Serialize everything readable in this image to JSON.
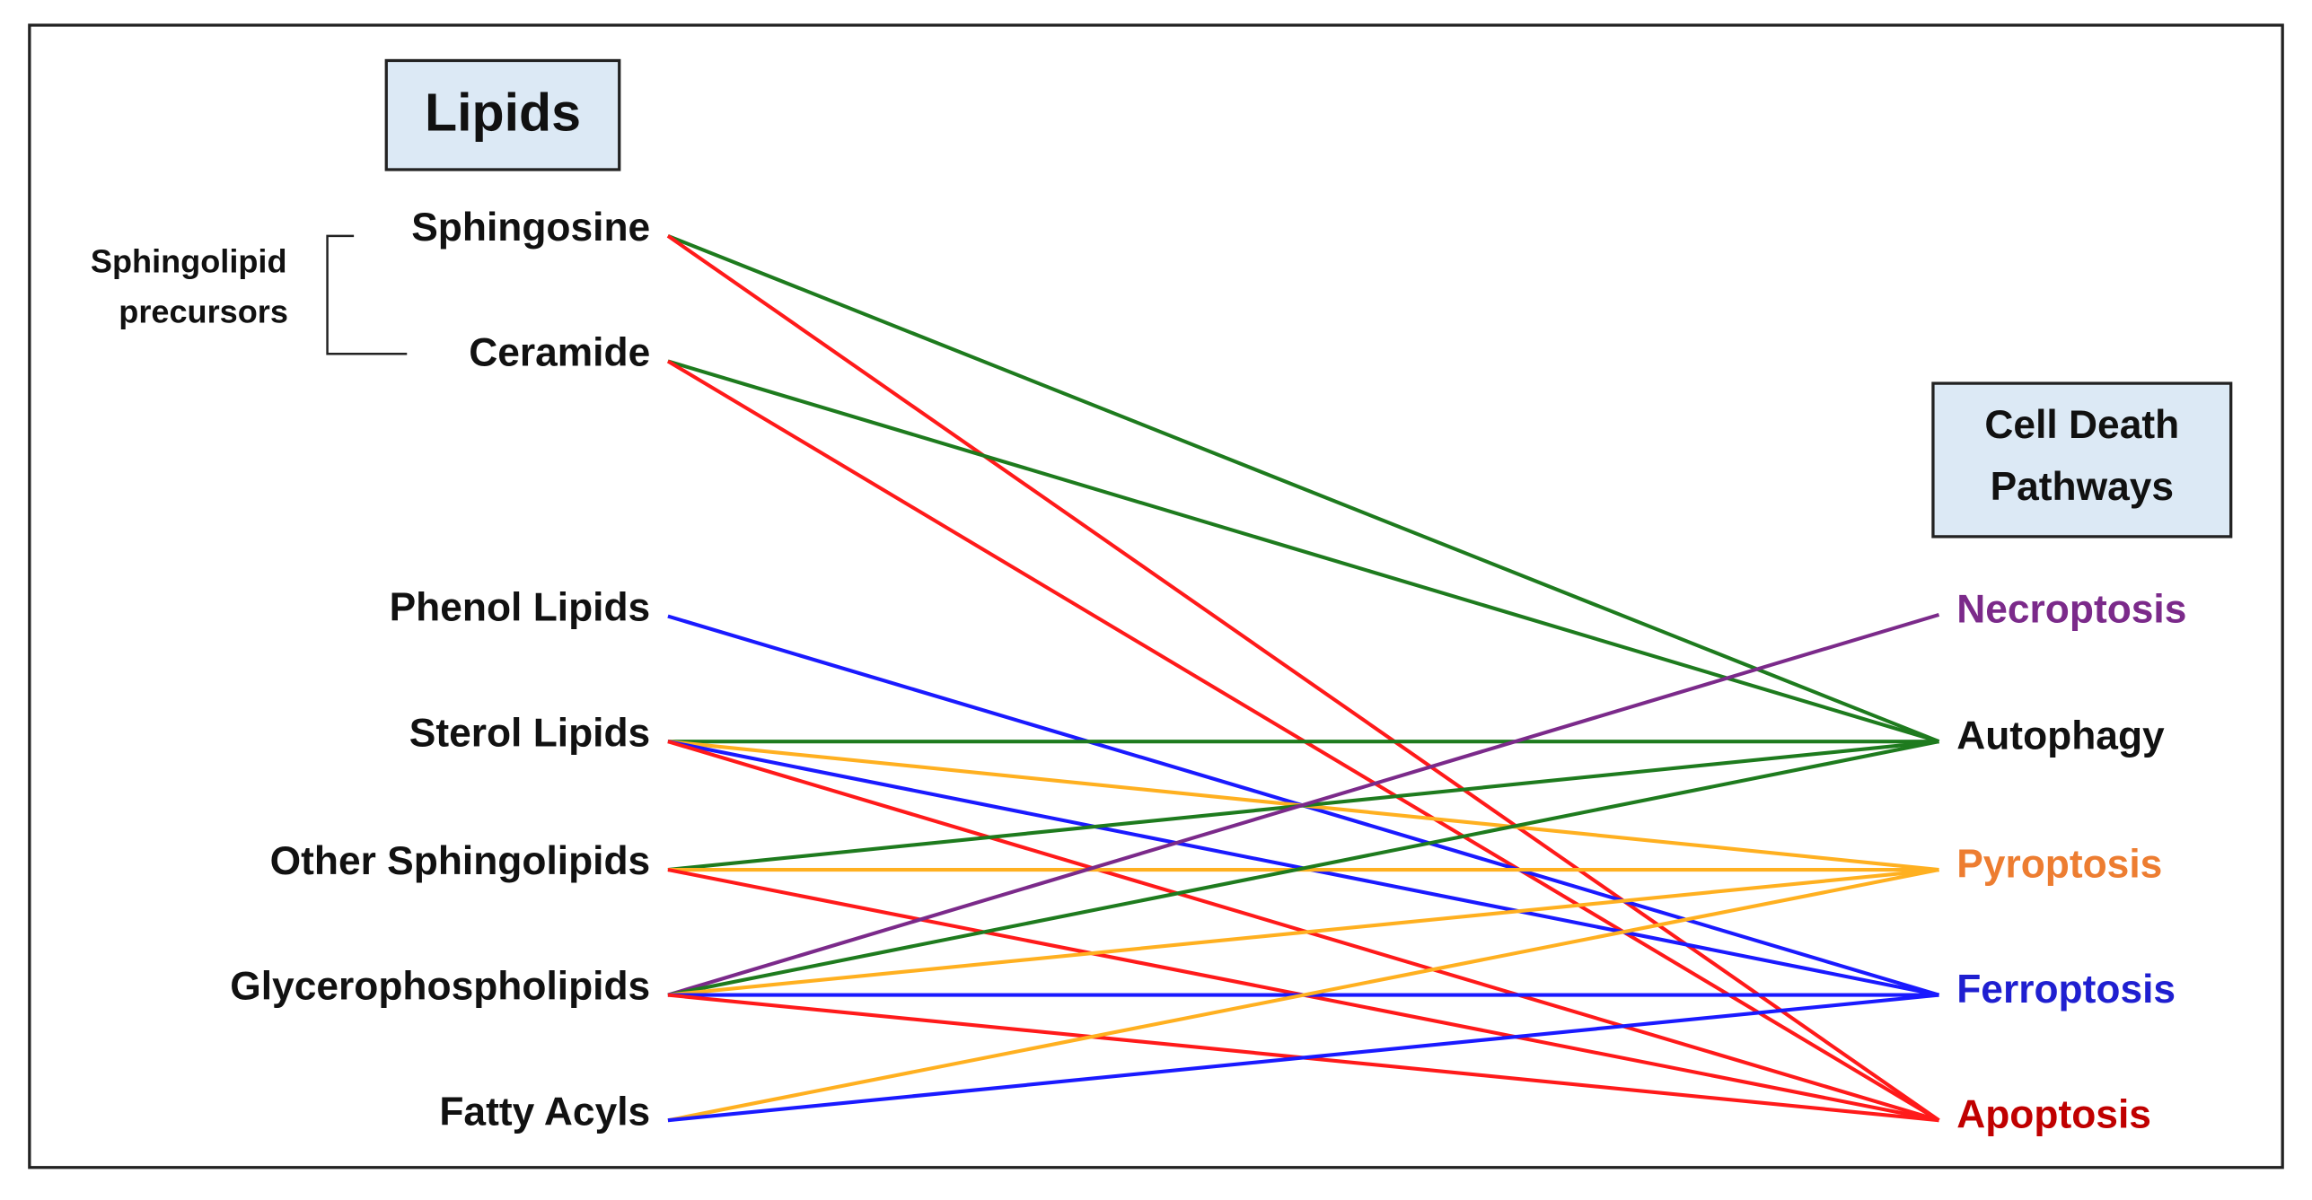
{
  "header": {
    "lipids_title": "Lipids",
    "pathways_title": [
      "Cell Death",
      "Pathways"
    ],
    "group_label": [
      "Sphingolipid",
      "precursors"
    ]
  },
  "lipids": [
    "Sphingosine",
    "Ceramide",
    "Phenol Lipids",
    "Sterol Lipids",
    "Other Sphingolipids",
    "Glycerophospholipids",
    "Fatty Acyls"
  ],
  "pathways": [
    {
      "label": "Necroptosis",
      "text_color": "#7b2a8a",
      "line_color": "#7b2a8a"
    },
    {
      "label": "Autophagy",
      "text_color": "#111111",
      "line_color": "#1e7b1e"
    },
    {
      "label": "Pyroptosis",
      "text_color": "#ed7d31",
      "line_color": "#ffb020"
    },
    {
      "label": "Ferroptosis",
      "text_color": "#1f1fd0",
      "line_color": "#1a1aff"
    },
    {
      "label": "Apoptosis",
      "text_color": "#c00000",
      "line_color": "#ff1a1a"
    }
  ],
  "edges": [
    {
      "from": "Sphingosine",
      "to": "Autophagy"
    },
    {
      "from": "Sphingosine",
      "to": "Apoptosis"
    },
    {
      "from": "Ceramide",
      "to": "Autophagy"
    },
    {
      "from": "Ceramide",
      "to": "Apoptosis"
    },
    {
      "from": "Phenol Lipids",
      "to": "Ferroptosis"
    },
    {
      "from": "Sterol Lipids",
      "to": "Autophagy"
    },
    {
      "from": "Sterol Lipids",
      "to": "Pyroptosis"
    },
    {
      "from": "Sterol Lipids",
      "to": "Ferroptosis"
    },
    {
      "from": "Sterol Lipids",
      "to": "Apoptosis"
    },
    {
      "from": "Other Sphingolipids",
      "to": "Autophagy"
    },
    {
      "from": "Other Sphingolipids",
      "to": "Pyroptosis"
    },
    {
      "from": "Other Sphingolipids",
      "to": "Apoptosis"
    },
    {
      "from": "Glycerophospholipids",
      "to": "Necroptosis"
    },
    {
      "from": "Glycerophospholipids",
      "to": "Autophagy"
    },
    {
      "from": "Glycerophospholipids",
      "to": "Pyroptosis"
    },
    {
      "from": "Glycerophospholipids",
      "to": "Ferroptosis"
    },
    {
      "from": "Glycerophospholipids",
      "to": "Apoptosis"
    },
    {
      "from": "Fatty Acyls",
      "to": "Pyroptosis"
    },
    {
      "from": "Fatty Acyls",
      "to": "Ferroptosis"
    }
  ]
}
